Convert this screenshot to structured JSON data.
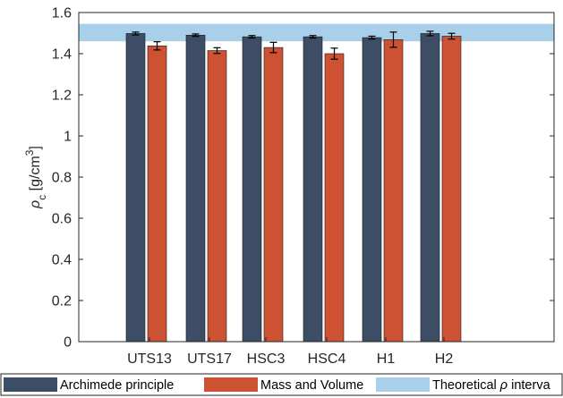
{
  "chart_data": {
    "type": "bar",
    "categories": [
      "UTS13",
      "UTS17",
      "HSC3",
      "HSC4",
      "H1",
      "H2"
    ],
    "series": [
      {
        "name": "Archimede principle",
        "color": "#3d4d66",
        "values": [
          1.498,
          1.49,
          1.482,
          1.482,
          1.478,
          1.498
        ],
        "errors": [
          0.007,
          0.006,
          0.006,
          0.006,
          0.007,
          0.011
        ]
      },
      {
        "name": "Mass and Volume",
        "color": "#cd5234",
        "values": [
          1.438,
          1.415,
          1.43,
          1.4,
          1.468,
          1.485
        ],
        "errors": [
          0.02,
          0.014,
          0.025,
          0.027,
          0.037,
          0.014
        ]
      }
    ],
    "band": {
      "label": "Theoretical ρ interval",
      "ymin": 1.46,
      "ymax": 1.545,
      "color": "#a9d0ea"
    },
    "ylabel": "ρ_c [g/cm³]",
    "ylabel_parts": {
      "main": "ρ",
      "sub": "c",
      "unit": " [g/cm",
      "sup": "3",
      "close": "]"
    },
    "xlabel": "",
    "ylim": [
      0,
      1.6
    ],
    "yticks": [
      0,
      0.2,
      0.4,
      0.6,
      0.8,
      1,
      1.2,
      1.4,
      1.6
    ],
    "ytick_labels": [
      "0",
      "0.2",
      "0.4",
      "0.6",
      "0.8",
      "1",
      "1.2",
      "1.4",
      "1.6"
    ],
    "grid": false,
    "legend_position": "bottom",
    "legend_labels": {
      "archimede": "Archimede principle",
      "mass": "Mass and Volume",
      "theoretical_prefix": "Theoretical ",
      "theoretical_symbol": "ρ",
      "theoretical_suffix": " interva"
    }
  }
}
